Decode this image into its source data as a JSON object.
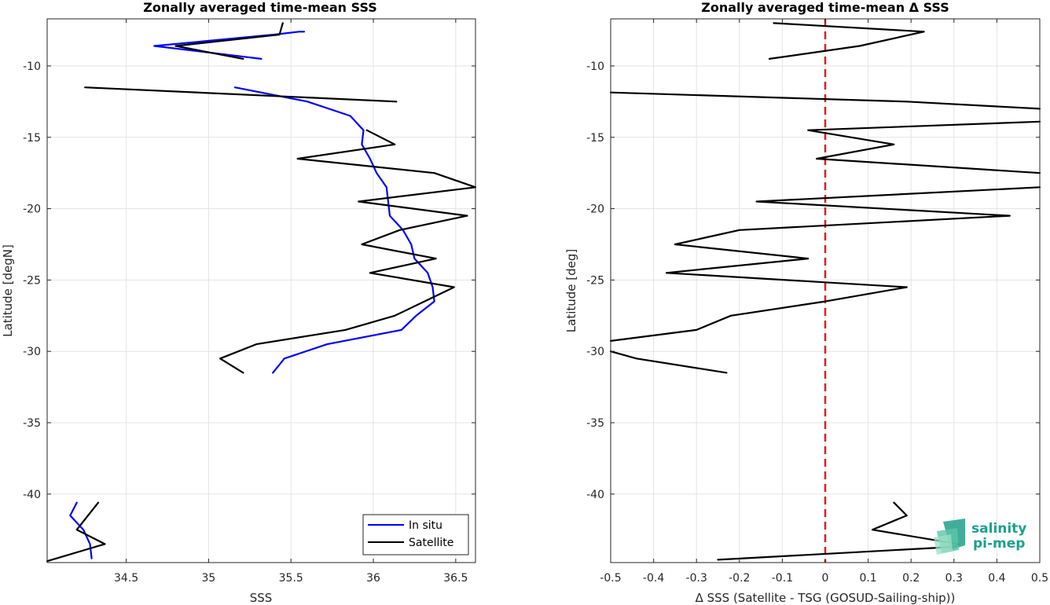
{
  "chart_data": [
    {
      "type": "line",
      "title": "Zonally averaged time-mean SSS",
      "xlabel": "SSS",
      "ylabel": "Latitude [degN]",
      "xlim": [
        34.02,
        36.62
      ],
      "ylim": [
        -44.8,
        -6.7
      ],
      "xticks": [
        34.5,
        35,
        35.5,
        36,
        36.5
      ],
      "xtick_labels": [
        "34.5",
        "35",
        "35.5",
        "36",
        "36.5"
      ],
      "yticks": [
        -10,
        -15,
        -20,
        -25,
        -30,
        -35,
        -40
      ],
      "ytick_labels": [
        "-10",
        "-15",
        "-20",
        "-25",
        "-30",
        "-35",
        "-40"
      ],
      "grid": true,
      "legend": "bottom-right",
      "series": [
        {
          "name": "In situ",
          "color": "#0000ff",
          "segments": [
            [
              [
                35.58,
                -7.6
              ],
              [
                35.55,
                -7.6
              ],
              [
                35.4,
                -7.8
              ],
              [
                34.67,
                -8.6
              ],
              [
                35.32,
                -9.5
              ]
            ],
            [
              [
                35.16,
                -11.5
              ],
              [
                35.6,
                -12.5
              ],
              [
                35.86,
                -13.5
              ],
              [
                35.94,
                -14.5
              ],
              [
                35.93,
                -15.5
              ],
              [
                35.98,
                -16.5
              ],
              [
                36.02,
                -17.5
              ],
              [
                36.08,
                -18.5
              ],
              [
                36.09,
                -19.5
              ],
              [
                36.1,
                -20.5
              ],
              [
                36.18,
                -21.5
              ],
              [
                36.23,
                -22.5
              ],
              [
                36.25,
                -23.5
              ],
              [
                36.33,
                -24.5
              ],
              [
                36.36,
                -25.5
              ],
              [
                36.37,
                -26.5
              ],
              [
                36.26,
                -27.5
              ],
              [
                36.17,
                -28.5
              ],
              [
                35.72,
                -29.5
              ],
              [
                35.46,
                -30.5
              ],
              [
                35.39,
                -31.5
              ]
            ],
            [
              [
                34.2,
                -40.6
              ],
              [
                34.16,
                -41.5
              ],
              [
                34.24,
                -42.5
              ],
              [
                34.28,
                -43.5
              ],
              [
                34.29,
                -44.5
              ]
            ]
          ]
        },
        {
          "name": "Satellite",
          "color": "#000000",
          "segments": [
            [
              [
                35.45,
                -7.0
              ],
              [
                35.43,
                -7.8
              ],
              [
                34.8,
                -8.6
              ],
              [
                35.21,
                -9.5
              ]
            ],
            [
              [
                34.25,
                -11.5
              ],
              [
                36.14,
                -12.5
              ]
            ],
            [
              [
                35.96,
                -14.5
              ],
              [
                36.13,
                -15.5
              ],
              [
                35.54,
                -16.5
              ],
              [
                36.37,
                -17.5
              ],
              [
                36.62,
                -18.5
              ],
              [
                35.91,
                -19.5
              ],
              [
                36.57,
                -20.5
              ],
              [
                36.16,
                -21.5
              ],
              [
                35.93,
                -22.5
              ],
              [
                36.38,
                -23.5
              ],
              [
                35.98,
                -24.5
              ],
              [
                36.49,
                -25.5
              ],
              [
                36.13,
                -27.5
              ],
              [
                35.83,
                -28.5
              ],
              [
                35.29,
                -29.5
              ],
              [
                35.07,
                -30.5
              ],
              [
                35.21,
                -31.5
              ]
            ],
            [
              [
                34.33,
                -40.6
              ],
              [
                34.2,
                -42.5
              ],
              [
                34.37,
                -43.5
              ],
              [
                34.02,
                -44.7
              ]
            ]
          ]
        }
      ]
    },
    {
      "type": "line",
      "title": "Zonally averaged time-mean Δ SSS",
      "xlabel": "Δ SSS (Satellite - TSG (GOSUD-Sailing-ship))",
      "ylabel": "Latitude [deg]",
      "xlim": [
        -0.5,
        0.5
      ],
      "ylim": [
        -44.8,
        -6.7
      ],
      "xticks": [
        -0.5,
        -0.4,
        -0.3,
        -0.2,
        -0.1,
        0,
        0.1,
        0.2,
        0.3,
        0.4,
        0.5
      ],
      "xtick_labels": [
        "-0.5",
        "-0.4",
        "-0.3",
        "-0.2",
        "-0.1",
        "0",
        "0.1",
        "0.2",
        "0.3",
        "0.4",
        "0.5"
      ],
      "yticks": [
        -10,
        -15,
        -20,
        -25,
        -30,
        -35,
        -40
      ],
      "ytick_labels": [
        "-10",
        "-15",
        "-20",
        "-25",
        "-30",
        "-35",
        "-40"
      ],
      "grid": true,
      "zero_line": {
        "x": 0,
        "color": "#e41a1c",
        "style": "dashed"
      },
      "series": [
        {
          "color": "#000000",
          "segments": [
            [
              [
                -0.12,
                -7.0
              ],
              [
                0.23,
                -7.6
              ],
              [
                0.08,
                -8.6
              ],
              [
                -0.13,
                -9.5
              ]
            ],
            [
              [
                -0.5,
                -11.86
              ],
              [
                0.19,
                -12.5
              ],
              [
                0.5,
                -13.0
              ]
            ],
            [
              [
                0.5,
                -13.9
              ],
              [
                -0.04,
                -14.5
              ],
              [
                0.16,
                -15.5
              ],
              [
                -0.02,
                -16.5
              ],
              [
                0.5,
                -17.5
              ]
            ],
            [
              [
                0.5,
                -18.5
              ],
              [
                -0.16,
                -19.5
              ],
              [
                0.43,
                -20.5
              ],
              [
                -0.2,
                -21.5
              ],
              [
                -0.35,
                -22.5
              ],
              [
                -0.04,
                -23.5
              ],
              [
                -0.37,
                -24.5
              ],
              [
                0.19,
                -25.5
              ],
              [
                0.0,
                -26.5
              ],
              [
                -0.22,
                -27.5
              ],
              [
                -0.3,
                -28.5
              ],
              [
                -0.5,
                -29.27
              ]
            ],
            [
              [
                -0.5,
                -30.0
              ],
              [
                -0.44,
                -30.5
              ],
              [
                -0.23,
                -31.5
              ]
            ],
            [
              [
                0.16,
                -40.6
              ],
              [
                0.19,
                -41.5
              ],
              [
                0.11,
                -42.5
              ],
              [
                0.31,
                -43.5
              ],
              [
                0.3,
                -43.7
              ],
              [
                -0.25,
                -44.6
              ]
            ]
          ]
        }
      ]
    }
  ],
  "logo": {
    "line1": "salinity",
    "line2": "pi-mep",
    "color": "#1ea08a"
  }
}
